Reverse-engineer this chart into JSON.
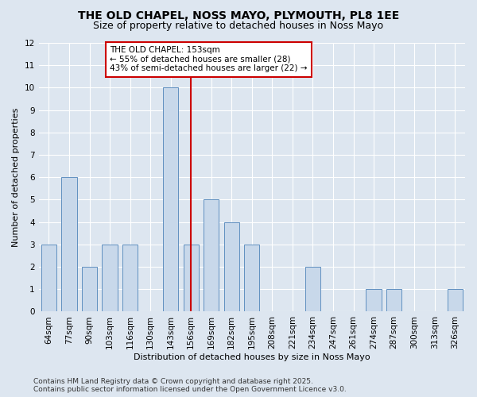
{
  "title1": "THE OLD CHAPEL, NOSS MAYO, PLYMOUTH, PL8 1EE",
  "title2": "Size of property relative to detached houses in Noss Mayo",
  "xlabel": "Distribution of detached houses by size in Noss Mayo",
  "ylabel": "Number of detached properties",
  "categories": [
    "64sqm",
    "77sqm",
    "90sqm",
    "103sqm",
    "116sqm",
    "130sqm",
    "143sqm",
    "156sqm",
    "169sqm",
    "182sqm",
    "195sqm",
    "208sqm",
    "221sqm",
    "234sqm",
    "247sqm",
    "261sqm",
    "274sqm",
    "287sqm",
    "300sqm",
    "313sqm",
    "326sqm"
  ],
  "values": [
    3,
    6,
    2,
    3,
    3,
    0,
    10,
    3,
    5,
    4,
    3,
    0,
    0,
    2,
    0,
    0,
    1,
    1,
    0,
    0,
    1
  ],
  "bar_color": "#c8d8ea",
  "bar_edge_color": "#6090c0",
  "highlight_index": 7,
  "highlight_line_color": "#cc0000",
  "ylim": [
    0,
    12
  ],
  "yticks": [
    0,
    1,
    2,
    3,
    4,
    5,
    6,
    7,
    8,
    9,
    10,
    11,
    12
  ],
  "annotation_box_text": "THE OLD CHAPEL: 153sqm\n← 55% of detached houses are smaller (28)\n43% of semi-detached houses are larger (22) →",
  "annotation_box_color": "#ffffff",
  "annotation_box_edge_color": "#cc0000",
  "footer_line1": "Contains HM Land Registry data © Crown copyright and database right 2025.",
  "footer_line2": "Contains public sector information licensed under the Open Government Licence v3.0.",
  "background_color": "#dde6f0",
  "plot_bg_color": "#dde6f0",
  "grid_color": "#ffffff",
  "title_fontsize": 10,
  "subtitle_fontsize": 9,
  "axis_label_fontsize": 8,
  "tick_fontsize": 7.5,
  "annotation_fontsize": 7.5,
  "footer_fontsize": 6.5,
  "bar_width": 0.75
}
